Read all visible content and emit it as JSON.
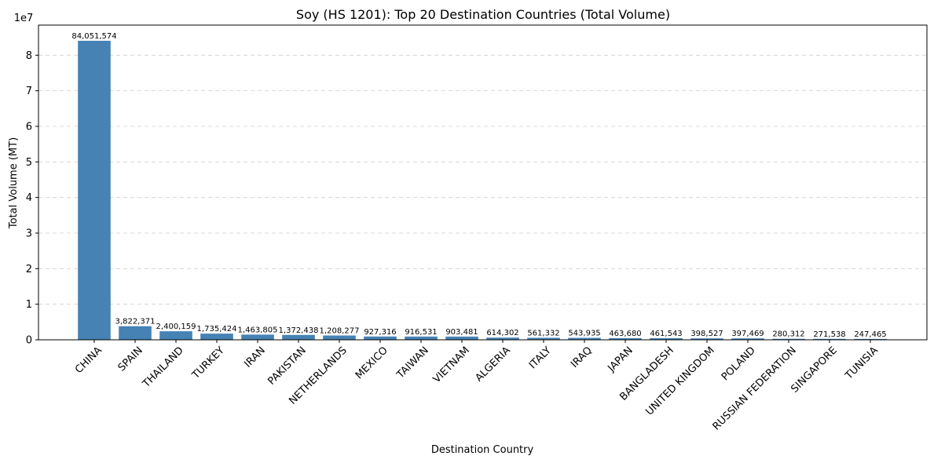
{
  "chart_data": {
    "type": "bar",
    "title": "Soy (HS 1201): Top 20 Destination Countries (Total Volume)",
    "xlabel": "Destination Country",
    "ylabel": "Total Volume (MT)",
    "y_offset_text": "1e7",
    "ylim": [
      0,
      88454145
    ],
    "ytick_values": [
      0,
      10000000,
      20000000,
      30000000,
      40000000,
      50000000,
      60000000,
      70000000,
      80000000
    ],
    "ytick_labels": [
      "0",
      "1",
      "2",
      "3",
      "4",
      "5",
      "6",
      "7",
      "8"
    ],
    "grid": "y",
    "bar_color": "#4682b4",
    "categories": [
      "CHINA",
      "SPAIN",
      "THAILAND",
      "TURKEY",
      "IRAN",
      "PAKISTAN",
      "NETHERLANDS",
      "MEXICO",
      "TAIWAN",
      "VIETNAM",
      "ALGERIA",
      "ITALY",
      "IRAQ",
      "JAPAN",
      "BANGLADESH",
      "UNITED KINGDOM",
      "POLAND",
      "RUSSIAN FEDERATION",
      "SINGAPORE",
      "TUNISIA"
    ],
    "values": [
      84051574,
      3822371,
      2400159,
      1735424,
      1463805,
      1372438,
      1208277,
      927316,
      916531,
      903481,
      614302,
      561332,
      543935,
      463680,
      461543,
      398527,
      397469,
      280312,
      271538,
      247465
    ],
    "value_labels": [
      "84,051,574",
      "3,822,371",
      "2,400,159",
      "1,735,424",
      "1,463,805",
      "1,372,438",
      "1,208,277",
      "927,316",
      "916,531",
      "903,481",
      "614,302",
      "561,332",
      "543,935",
      "463,680",
      "461,543",
      "398,527",
      "397,469",
      "280,312",
      "271,538",
      "247,465"
    ]
  }
}
